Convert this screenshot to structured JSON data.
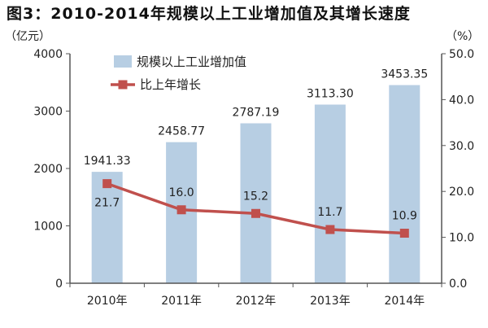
{
  "title": "图3：2010-2014年规模以上工业增加值及其增长速度",
  "left_unit": "（亿元）",
  "right_unit": "（%）",
  "colors": {
    "bar": "#b7cee3",
    "line": "#c0504d",
    "axis": "#555555"
  },
  "chart_data": {
    "type": "bar",
    "categories": [
      "2010年",
      "2011年",
      "2012年",
      "2013年",
      "2014年"
    ],
    "series": [
      {
        "name": "规模以上工业增加值",
        "type": "bar",
        "axis": "left",
        "values": [
          1941.33,
          2458.77,
          2787.19,
          3113.3,
          3453.35
        ],
        "labels": [
          "1941.33",
          "2458.77",
          "2787.19",
          "3113.30",
          "3453.35"
        ]
      },
      {
        "name": "比上年增长",
        "type": "line",
        "axis": "right",
        "values": [
          21.7,
          16.0,
          15.2,
          11.7,
          10.9
        ],
        "labels": [
          "21.7",
          "16.0",
          "15.2",
          "11.7",
          "10.9"
        ]
      }
    ],
    "y_left": {
      "range": [
        0,
        4000
      ],
      "ticks": [
        0,
        1000,
        2000,
        3000,
        4000
      ],
      "tick_labels": [
        "0",
        "1000",
        "2000",
        "3000",
        "4000"
      ]
    },
    "y_right": {
      "range": [
        0,
        50
      ],
      "ticks": [
        0,
        10,
        20,
        30,
        40,
        50
      ],
      "tick_labels": [
        "0.0",
        "10.0",
        "20.0",
        "30.0",
        "40.0",
        "50.0"
      ]
    },
    "grid": false,
    "legend_position": "top-left"
  }
}
